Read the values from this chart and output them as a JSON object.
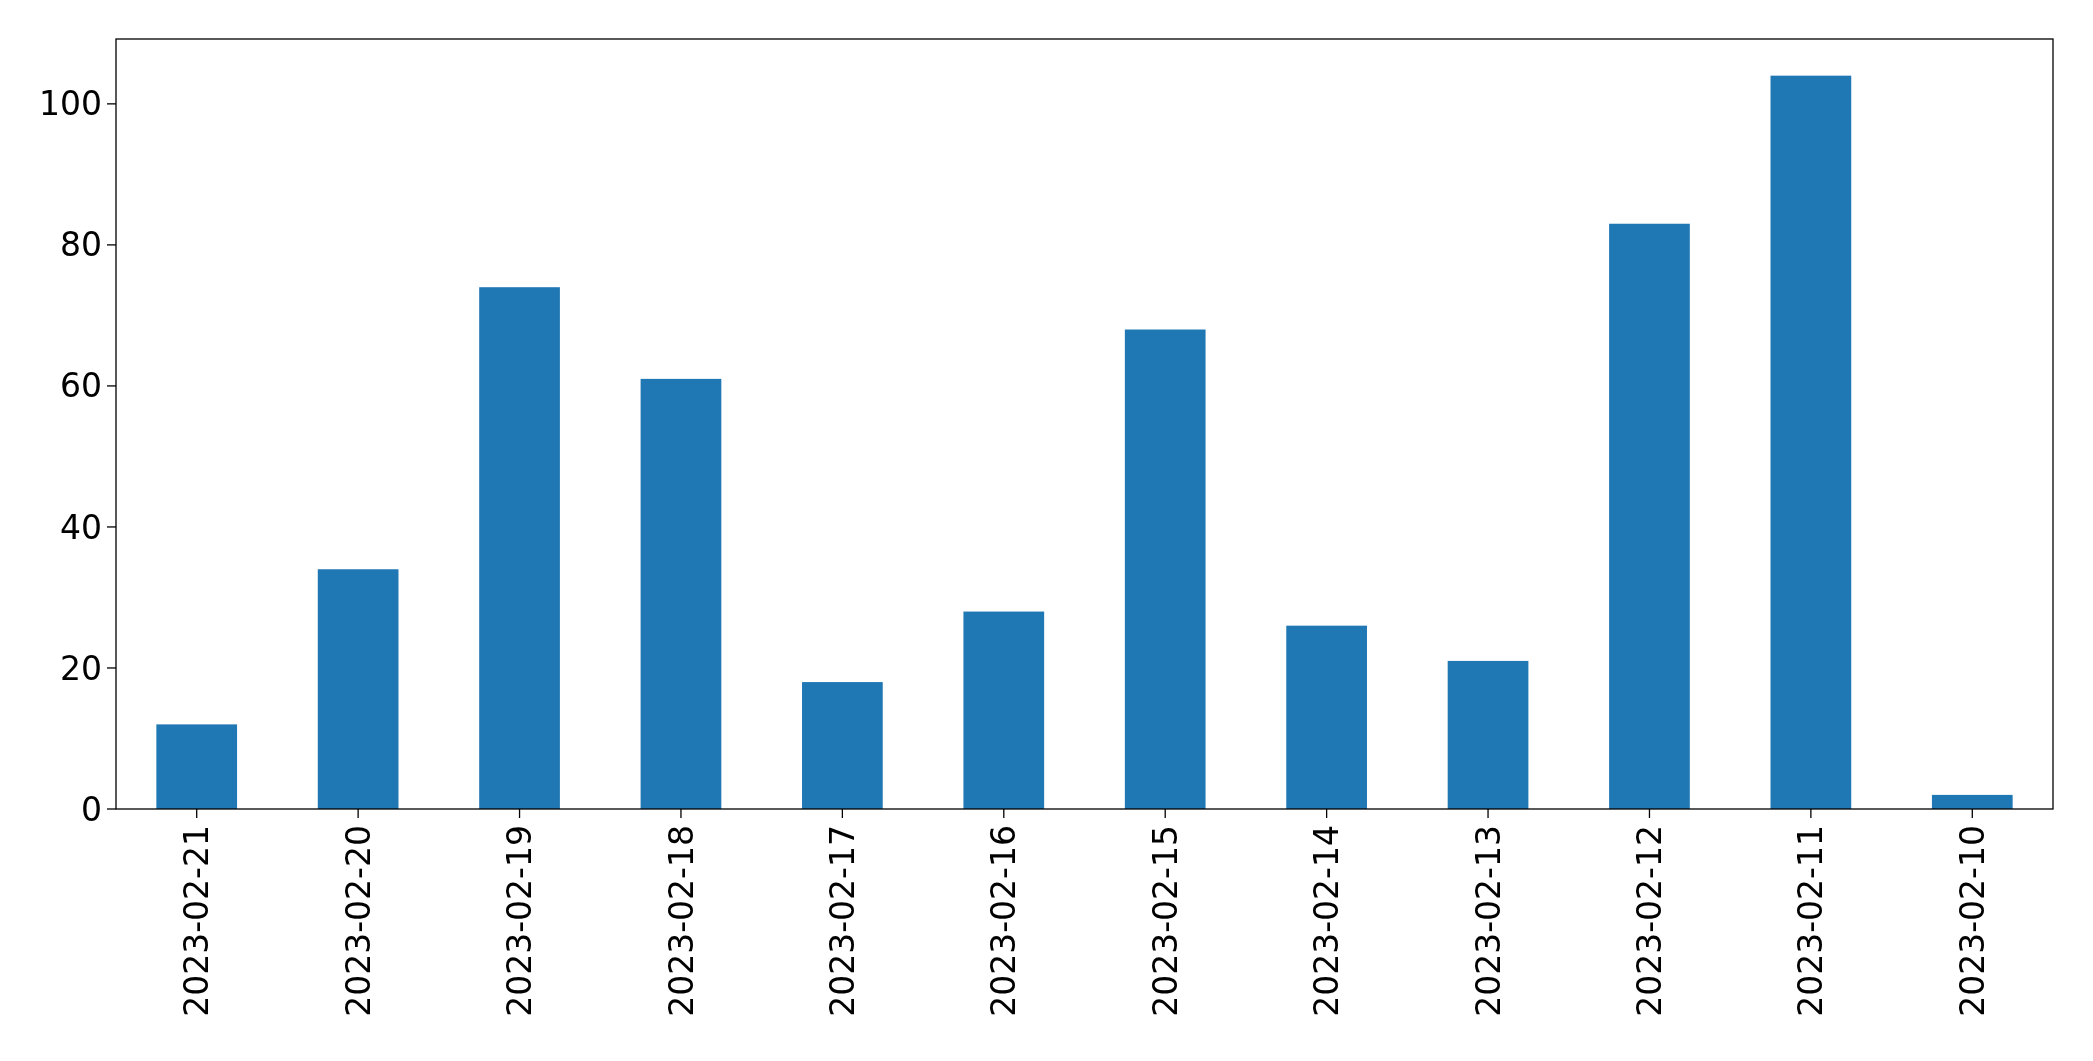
{
  "chart_data": {
    "type": "bar",
    "categories": [
      "2023-02-21",
      "2023-02-20",
      "2023-02-19",
      "2023-02-18",
      "2023-02-17",
      "2023-02-16",
      "2023-02-15",
      "2023-02-14",
      "2023-02-13",
      "2023-02-12",
      "2023-02-11",
      "2023-02-10"
    ],
    "values": [
      12,
      34,
      74,
      61,
      18,
      28,
      68,
      26,
      21,
      83,
      104,
      2
    ],
    "color": "#1f77b4",
    "ylim": [
      0,
      109.2
    ],
    "yticks": [
      0,
      20,
      40,
      60,
      80,
      100
    ],
    "grid": false
  }
}
